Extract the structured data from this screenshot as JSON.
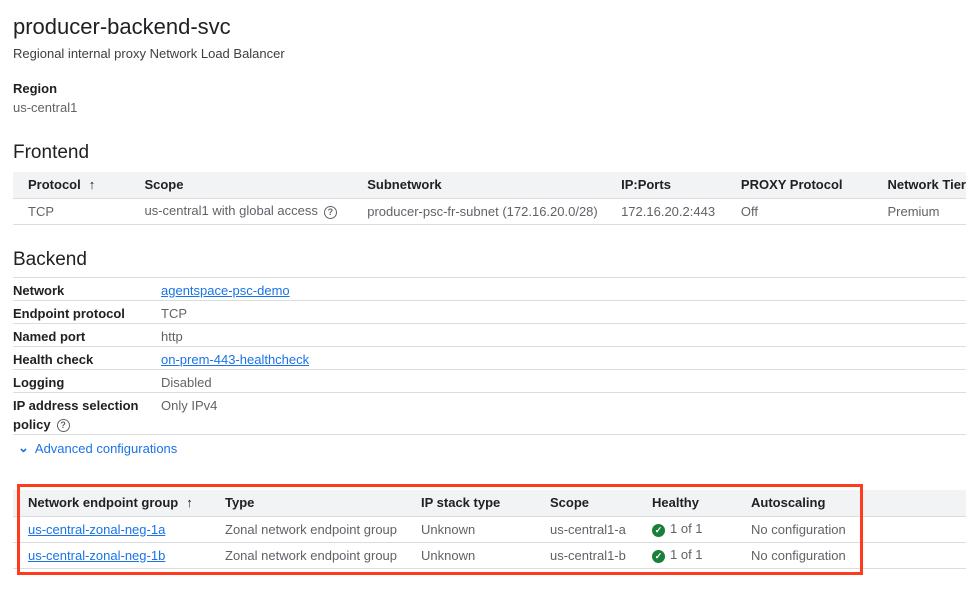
{
  "header": {
    "title": "producer-backend-svc",
    "subtitle": "Regional internal proxy Network Load Balancer"
  },
  "region": {
    "label": "Region",
    "value": "us-central1"
  },
  "frontend": {
    "heading": "Frontend",
    "columns": [
      "Protocol",
      "Scope",
      "Subnetwork",
      "IP:Ports",
      "PROXY Protocol",
      "Network Tier"
    ],
    "rows": [
      [
        "TCP",
        "us-central1 with global access",
        "producer-psc-fr-subnet (172.16.20.0/28)",
        "172.16.20.2:443",
        "Off",
        "Premium"
      ]
    ]
  },
  "backend": {
    "heading": "Backend",
    "network": {
      "label": "Network",
      "value": "agentspace-psc-demo"
    },
    "endpoint_protocol": {
      "label": "Endpoint protocol",
      "value": "TCP"
    },
    "named_port": {
      "label": "Named port",
      "value": "http"
    },
    "health_check": {
      "label": "Health check",
      "value": "on-prem-443-healthcheck"
    },
    "logging": {
      "label": "Logging",
      "value": "Disabled"
    },
    "ip_policy": {
      "label": "IP address selection policy",
      "value": "Only IPv4"
    },
    "advanced": "Advanced configurations"
  },
  "neg": {
    "columns": [
      "Network endpoint group",
      "Type",
      "IP stack type",
      "Scope",
      "Healthy",
      "Autoscaling"
    ],
    "rows": [
      [
        "us-central-zonal-neg-1a",
        "Zonal network endpoint group",
        "Unknown",
        "us-central1-a",
        "1 of 1",
        "No configuration"
      ],
      [
        "us-central-zonal-neg-1b",
        "Zonal network endpoint group",
        "Unknown",
        "us-central1-b",
        "1 of 1",
        "No configuration"
      ]
    ]
  },
  "colors": {
    "link": "#1a73e8",
    "healthy": "#188038",
    "highlight": "#ff3b1f"
  }
}
